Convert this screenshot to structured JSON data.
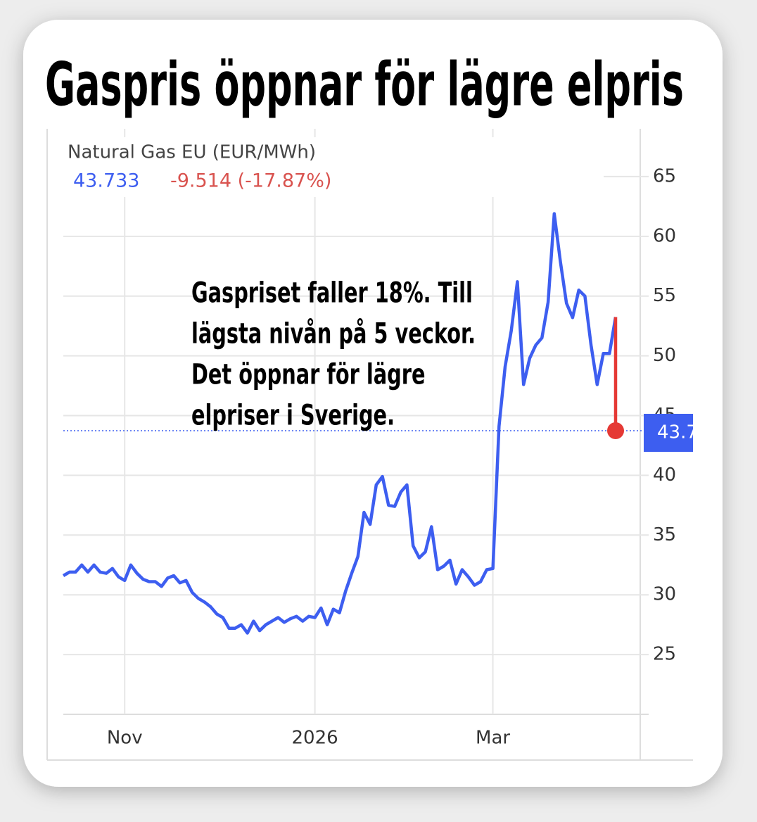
{
  "chart_data": {
    "type": "line",
    "title": "Gaspris öppnar för lägre elpris",
    "subtitle": "Natural Gas EU (EUR/MWh)",
    "last_price": 43.733,
    "change_label": "-9.514 (-17.87%)",
    "annotation": [
      "Gaspriset faller 18%. Till",
      "lägsta nivån på 5 veckor.",
      "Det öppnar för lägre",
      "elpriser i Sverige."
    ],
    "categories": [
      null,
      null,
      null,
      null,
      null,
      null,
      null,
      null,
      null,
      null,
      "Nov",
      null,
      null,
      null,
      null,
      null,
      null,
      null,
      null,
      null,
      null,
      null,
      null,
      null,
      null,
      null,
      null,
      null,
      null,
      null,
      null,
      null,
      null,
      null,
      null,
      null,
      null,
      null,
      null,
      null,
      null,
      "2026",
      null,
      null,
      null,
      null,
      null,
      null,
      null,
      null,
      null,
      null,
      null,
      null,
      null,
      null,
      null,
      null,
      null,
      null,
      null,
      null,
      null,
      null,
      null,
      null,
      null,
      null,
      null,
      null,
      "Mar",
      null,
      null,
      null,
      null,
      null,
      null,
      null,
      null,
      null,
      null,
      null,
      null,
      null,
      null,
      null,
      null,
      null,
      null,
      null,
      null
    ],
    "values": [
      31.6,
      31.9,
      31.9,
      32.5,
      31.9,
      32.5,
      31.9,
      31.8,
      32.2,
      31.5,
      31.2,
      32.5,
      31.8,
      31.3,
      31.1,
      31.1,
      30.7,
      31.4,
      31.6,
      31.0,
      31.2,
      30.2,
      29.7,
      29.4,
      29.0,
      28.4,
      28.1,
      27.2,
      27.2,
      27.5,
      26.8,
      27.8,
      27.0,
      27.5,
      27.8,
      28.1,
      27.7,
      28.0,
      28.2,
      27.8,
      28.2,
      28.1,
      28.9,
      27.5,
      28.8,
      28.5,
      30.3,
      31.8,
      33.2,
      36.9,
      35.9,
      39.2,
      39.9,
      37.5,
      37.4,
      38.6,
      39.2,
      34.1,
      33.1,
      33.6,
      35.7,
      32.1,
      32.4,
      32.9,
      30.9,
      32.1,
      31.5,
      30.8,
      31.1,
      32.1,
      32.2,
      44.1,
      49.1,
      52.1,
      56.2,
      47.6,
      49.8,
      50.9,
      51.5,
      54.5,
      61.9,
      57.9,
      54.4,
      53.2,
      55.5,
      55.0,
      50.9,
      47.6,
      50.2,
      50.2,
      53.247
    ],
    "color": "#3d5ef0",
    "drop_color": "#e53935",
    "change_color": "#d9534f",
    "ylim": [
      20,
      69
    ],
    "yticks": [
      25,
      30,
      35,
      40,
      45,
      50,
      55,
      60,
      65
    ],
    "grid": true
  }
}
